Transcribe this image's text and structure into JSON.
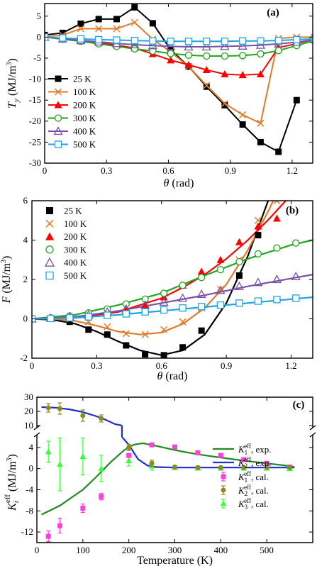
{
  "chart_data": [
    {
      "id": "a",
      "type": "line",
      "panel_label": "(a)",
      "xlabel": "θ (rad)",
      "ylabel": "T_y (MJ/m³)",
      "xlim": [
        0,
        1.3
      ],
      "ylim": [
        -30,
        8
      ],
      "xticks": [
        0,
        0.3,
        0.6,
        0.9,
        1.2
      ],
      "yticks": [
        5,
        0,
        -5,
        -10,
        -15,
        -20,
        -25,
        -30
      ],
      "legend_position": "bottom-left",
      "series": [
        {
          "name": "25 K",
          "color": "#000000",
          "marker": "filled-square",
          "x": [
            0,
            0.087,
            0.175,
            0.262,
            0.349,
            0.436,
            0.524,
            0.611,
            0.698,
            0.785,
            0.873,
            0.96,
            1.047,
            1.134,
            1.222
          ],
          "y": [
            0.5,
            1,
            3.2,
            4.3,
            4.3,
            7.1,
            3.3,
            -3,
            -7,
            -11.8,
            -16.2,
            -20.8,
            -25,
            -27.3,
            -15
          ]
        },
        {
          "name": "100 K",
          "color": "#e07b2a",
          "marker": "x",
          "x": [
            0,
            0.087,
            0.175,
            0.262,
            0.349,
            0.436,
            0.524,
            0.611,
            0.698,
            0.785,
            0.873,
            0.96,
            1.047,
            1.134,
            1.222,
            1.309
          ],
          "y": [
            0,
            0.5,
            2,
            2,
            2,
            3.5,
            -0.5,
            -3.5,
            -7,
            -11.5,
            -15.8,
            -18.5,
            -20.5,
            -0.3,
            0,
            0
          ]
        },
        {
          "name": "200 K",
          "color": "#ff0000",
          "marker": "filled-triangle",
          "x": [
            0,
            0.087,
            0.175,
            0.262,
            0.349,
            0.436,
            0.524,
            0.611,
            0.698,
            0.785,
            0.873,
            0.96,
            1.047,
            1.134,
            1.222,
            1.309
          ],
          "y": [
            0,
            -0.3,
            -0.8,
            -1.3,
            -1.9,
            -2.6,
            -4,
            -5.5,
            -6.6,
            -7.8,
            -8.8,
            -9,
            -8.8,
            -2.5,
            -1.5,
            -0.5
          ]
        },
        {
          "name": "300 K",
          "color": "#1fa51f",
          "marker": "open-circle",
          "x": [
            0,
            0.087,
            0.175,
            0.262,
            0.349,
            0.436,
            0.524,
            0.611,
            0.698,
            0.785,
            0.873,
            0.96,
            1.047,
            1.134,
            1.222,
            1.309
          ],
          "y": [
            0,
            -0.5,
            -1,
            -1.6,
            -2.2,
            -2.8,
            -3.3,
            -3.9,
            -4.3,
            -4.5,
            -4.5,
            -4.4,
            -4,
            -3.2,
            -2,
            -0.8
          ]
        },
        {
          "name": "400 K",
          "color": "#7a50a8",
          "marker": "open-triangle",
          "x": [
            0,
            0.087,
            0.175,
            0.262,
            0.349,
            0.436,
            0.524,
            0.611,
            0.698,
            0.785,
            0.873,
            0.96,
            1.047,
            1.134,
            1.222,
            1.309
          ],
          "y": [
            0,
            -0.4,
            -0.8,
            -1.1,
            -1.5,
            -1.8,
            -2,
            -2.2,
            -2.3,
            -2.3,
            -2.2,
            -2.1,
            -1.9,
            -1.6,
            -1.2,
            -0.6
          ]
        },
        {
          "name": "500 K",
          "color": "#1ea5e6",
          "marker": "open-square",
          "x": [
            0,
            0.087,
            0.175,
            0.262,
            0.349,
            0.436,
            0.524,
            0.611,
            0.698,
            0.785,
            0.873,
            0.96,
            1.047,
            1.134,
            1.222,
            1.309
          ],
          "y": [
            0,
            -0.2,
            -0.4,
            -0.6,
            -0.7,
            -0.8,
            -0.9,
            -1,
            -1,
            -1,
            -1,
            -0.9,
            -0.9,
            -0.8,
            -0.6,
            -0.4
          ]
        }
      ]
    },
    {
      "id": "b",
      "type": "scatter",
      "panel_label": "(b)",
      "xlabel": "θ (rad)",
      "ylabel": "F (MJ/m³)",
      "xlim": [
        0,
        1.3
      ],
      "ylim": [
        -2,
        6
      ],
      "xticks": [
        0,
        0.3,
        0.6,
        0.9,
        1.2
      ],
      "yticks": [
        6,
        4,
        2,
        0,
        -2
      ],
      "legend_position": "top-left",
      "series": [
        {
          "name": "25 K",
          "color": "#000000",
          "marker": "filled-square",
          "x": [
            0,
            0.087,
            0.175,
            0.262,
            0.349,
            0.436,
            0.524,
            0.611,
            0.698,
            0.785,
            0.873,
            0.96,
            1.047
          ],
          "y": [
            0,
            0,
            -0.15,
            -0.55,
            -0.8,
            -1.35,
            -1.8,
            -1.85,
            -1.45,
            -0.6,
            0.7,
            2.2,
            4.25
          ],
          "fit": {
            "x": [
              0,
              0.1,
              0.2,
              0.3,
              0.4,
              0.5,
              0.6,
              0.7,
              0.8,
              0.9,
              1.0,
              1.1,
              1.2
            ],
            "y": [
              0,
              -0.05,
              -0.25,
              -0.65,
              -1.15,
              -1.6,
              -1.85,
              -1.6,
              -0.8,
              0.8,
              3.2,
              6.2,
              9
            ]
          }
        },
        {
          "name": "100 K",
          "color": "#e07b2a",
          "marker": "x",
          "x": [
            0,
            0.087,
            0.175,
            0.262,
            0.349,
            0.436,
            0.524,
            0.611,
            0.698,
            0.785,
            0.873,
            0.96,
            1.047,
            1.134
          ],
          "y": [
            0,
            0.02,
            0,
            -0.15,
            -0.4,
            -0.75,
            -0.8,
            -0.55,
            -0.15,
            0.55,
            1.5,
            3,
            5,
            6
          ],
          "fit": {
            "x": [
              0,
              0.1,
              0.2,
              0.3,
              0.4,
              0.5,
              0.6,
              0.7,
              0.8,
              0.9,
              1.0,
              1.1,
              1.2
            ],
            "y": [
              0,
              0,
              -0.1,
              -0.35,
              -0.65,
              -0.8,
              -0.7,
              -0.25,
              0.55,
              1.75,
              3.5,
              5.6,
              8
            ]
          }
        },
        {
          "name": "200 K",
          "color": "#ff0000",
          "marker": "filled-triangle",
          "x": [
            0,
            0.087,
            0.175,
            0.262,
            0.349,
            0.436,
            0.524,
            0.611,
            0.698,
            0.785,
            0.873,
            0.96,
            1.047,
            1.134
          ],
          "y": [
            0,
            0.02,
            0.07,
            0.15,
            0.3,
            0.45,
            0.7,
            1.1,
            1.7,
            2.4,
            3,
            3.9,
            4.7,
            5.1
          ],
          "fit": {
            "x": [
              0,
              0.2,
              0.4,
              0.6,
              0.7,
              0.8,
              0.9,
              1.0,
              1.1,
              1.2
            ],
            "y": [
              0,
              0.05,
              0.35,
              1.05,
              1.6,
              2.25,
              3.05,
              4,
              5.1,
              6.3
            ]
          }
        },
        {
          "name": "300 K",
          "color": "#1fa51f",
          "marker": "open-circle",
          "x": [
            0,
            0.087,
            0.175,
            0.262,
            0.349,
            0.436,
            0.524,
            0.611,
            0.698,
            0.785,
            0.873,
            0.96,
            1.047,
            1.134,
            1.222
          ],
          "y": [
            0,
            0.05,
            0.15,
            0.3,
            0.5,
            0.75,
            1,
            1.3,
            1.7,
            2.1,
            2.5,
            2.9,
            3.3,
            3.6,
            3.85
          ],
          "fit": {
            "x": [
              0,
              0.2,
              0.4,
              0.6,
              0.8,
              1.0,
              1.2,
              1.3
            ],
            "y": [
              0,
              0.2,
              0.7,
              1.3,
              2.2,
              3.05,
              3.75,
              4
            ]
          }
        },
        {
          "name": "400 K",
          "color": "#7a50a8",
          "marker": "open-triangle",
          "x": [
            0,
            0.087,
            0.175,
            0.262,
            0.349,
            0.436,
            0.524,
            0.611,
            0.698,
            0.785,
            0.873,
            0.96,
            1.047,
            1.134,
            1.222
          ],
          "y": [
            0,
            0.03,
            0.1,
            0.2,
            0.35,
            0.5,
            0.7,
            0.85,
            1.05,
            1.25,
            1.45,
            1.65,
            1.85,
            2,
            2.15
          ],
          "fit": {
            "x": [
              0,
              0.2,
              0.4,
              0.6,
              0.8,
              1.0,
              1.2,
              1.3
            ],
            "y": [
              0,
              0.1,
              0.4,
              0.8,
              1.2,
              1.65,
              2.05,
              2.25
            ]
          }
        },
        {
          "name": "500 K",
          "color": "#1ea5e6",
          "marker": "open-square",
          "x": [
            0,
            0.087,
            0.175,
            0.262,
            0.349,
            0.436,
            0.524,
            0.611,
            0.698,
            0.785,
            0.873,
            0.96,
            1.047,
            1.134,
            1.222
          ],
          "y": [
            0,
            0.02,
            0.05,
            0.1,
            0.18,
            0.25,
            0.35,
            0.45,
            0.55,
            0.62,
            0.7,
            0.8,
            0.9,
            0.98,
            1.05
          ],
          "fit": {
            "x": [
              0,
              0.2,
              0.4,
              0.6,
              0.8,
              1.0,
              1.2,
              1.3
            ],
            "y": [
              0,
              0.05,
              0.2,
              0.4,
              0.6,
              0.8,
              1,
              1.1
            ]
          }
        }
      ]
    },
    {
      "id": "c",
      "type": "line",
      "panel_label": "(c)",
      "xlabel": "Temperature (K)",
      "ylabel": "K_i^eff (MJ/m³)",
      "xlim": [
        0,
        600
      ],
      "ylim_lower": [
        -14,
        6
      ],
      "ylim_upper": [
        10,
        30
      ],
      "axis_break": true,
      "xticks": [
        0,
        100,
        200,
        300,
        400,
        500
      ],
      "yticks_upper": [
        30,
        20,
        10
      ],
      "yticks_lower": [
        4,
        0,
        -4,
        -8,
        -12
      ],
      "legend_position": "bottom-right",
      "lines": [
        {
          "name": "K₁^eff, exp.",
          "color": "#1f8a1f",
          "x": [
            10,
            50,
            80,
            100,
            130,
            160,
            190,
            210,
            230,
            260,
            300,
            350,
            400,
            450,
            500,
            550,
            560
          ],
          "y": [
            -8.7,
            -7,
            -5.2,
            -4,
            -1.5,
            1.2,
            3.5,
            4.5,
            4.8,
            4.3,
            3.5,
            2.7,
            2.1,
            1.5,
            1,
            0.5,
            0.3
          ]
        },
        {
          "name": "K₂^eff, exp.",
          "color": "#1d2fcc",
          "x_upper": [
            10,
            40,
            70,
            100,
            130,
            150,
            170,
            185
          ],
          "y_upper": [
            23,
            22.6,
            21.5,
            19.5,
            16.5,
            14,
            11,
            10
          ],
          "x_lower": [
            185,
            200,
            220,
            240,
            260,
            300,
            350,
            400,
            450,
            500,
            560
          ],
          "y_lower": [
            6,
            4.5,
            1.8,
            0.6,
            0.3,
            0.2,
            0.2,
            0.2,
            0.2,
            0.2,
            0.2
          ]
        }
      ],
      "points": [
        {
          "name": "K₁^eff, cal.",
          "color": "#ff3de0",
          "marker": "filled-square",
          "x": [
            25,
            50,
            100,
            140,
            200,
            250,
            300,
            350,
            400,
            450,
            500,
            550
          ],
          "y": [
            -12.8,
            -10.8,
            -7.5,
            -5.3,
            2.5,
            4.5,
            4.1,
            3,
            2.5,
            1.7,
            1,
            0.3
          ],
          "err": [
            1,
            1.4,
            0.8,
            0.6,
            0.4,
            0.3,
            0.3,
            0.3,
            0.3,
            0.3,
            0.2,
            0.2
          ]
        },
        {
          "name": "K₂^eff, cal.",
          "color": "#8b8a1c",
          "marker": "filled-circle",
          "x_upper": [
            25,
            50,
            100,
            140
          ],
          "y_upper": [
            22.5,
            22,
            17,
            15
          ],
          "err_upper": [
            3,
            4,
            4,
            2.5
          ],
          "x_lower": [
            200,
            250,
            300,
            350,
            400,
            450,
            500,
            550
          ],
          "y_lower": [
            4,
            1,
            0.3,
            0.2,
            0.2,
            0.2,
            0.2,
            0.2
          ],
          "err_lower": [
            0.6,
            0.6,
            0.3,
            0.3,
            0.2,
            0.2,
            0.2,
            0.2
          ]
        },
        {
          "name": "K₃^eff, cal.",
          "color": "#3cff3c",
          "marker": "filled-triangle",
          "x": [
            25,
            50,
            100,
            140,
            200,
            250,
            300,
            350,
            400,
            450,
            500,
            550
          ],
          "y": [
            3.2,
            0.8,
            2.3,
            0,
            1.5,
            0.5,
            0.2,
            0.1,
            0.1,
            0.1,
            0.1,
            0
          ],
          "err": [
            2,
            5,
            3.5,
            2.5,
            1,
            0.8,
            0.3,
            0.3,
            0.3,
            0.3,
            0.3,
            0.3
          ]
        }
      ]
    }
  ]
}
